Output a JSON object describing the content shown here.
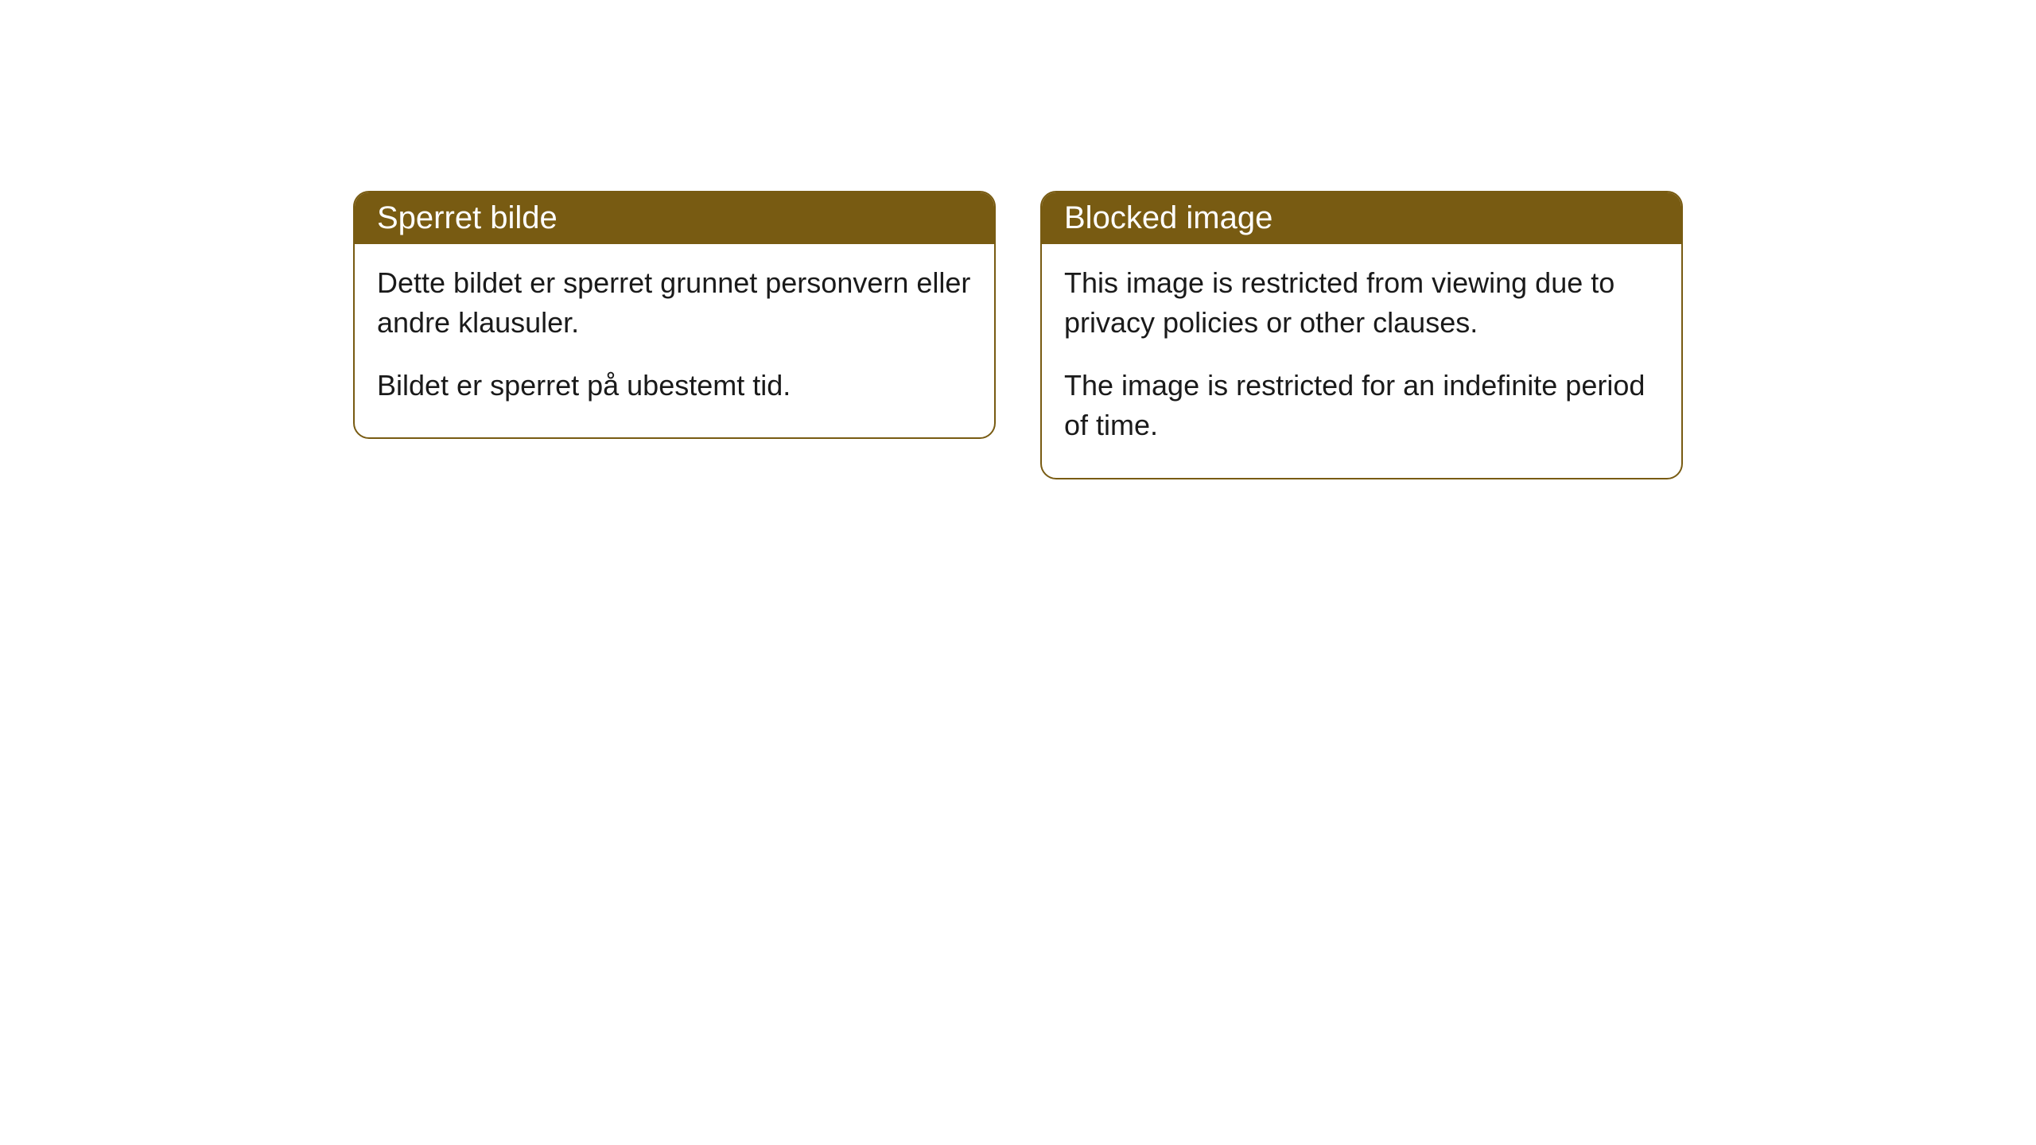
{
  "cards": [
    {
      "title": "Sperret bilde",
      "paragraph1": "Dette bildet er sperret grunnet personvern eller andre klausuler.",
      "paragraph2": "Bildet er sperret på ubestemt tid."
    },
    {
      "title": "Blocked image",
      "paragraph1": "This image is restricted from viewing due to privacy policies or other clauses.",
      "paragraph2": "The image is restricted for an indefinite period of time."
    }
  ],
  "styling": {
    "header_bg_color": "#785b12",
    "header_text_color": "#ffffff",
    "border_color": "#785b12",
    "body_text_color": "#1a1a1a",
    "card_bg_color": "#ffffff",
    "page_bg_color": "#ffffff",
    "border_radius": 20,
    "header_fontsize": 40,
    "body_fontsize": 36
  }
}
